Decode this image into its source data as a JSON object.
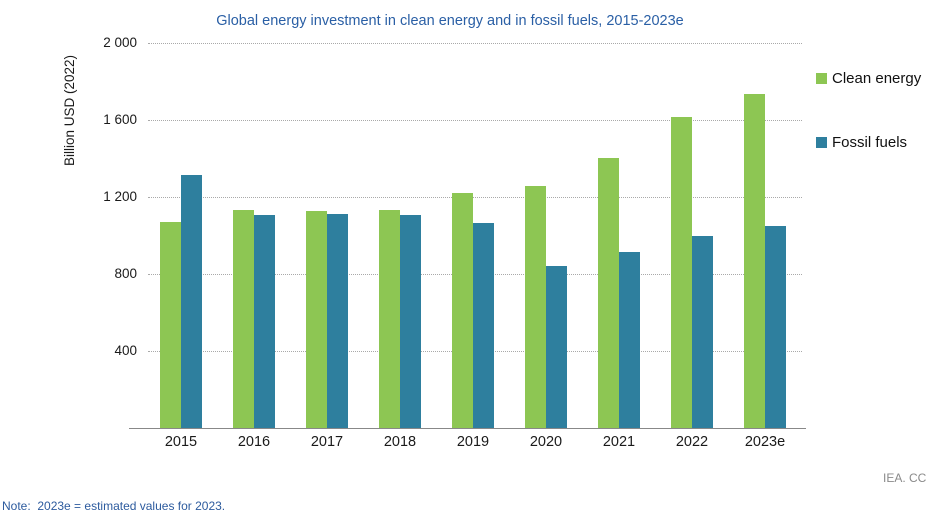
{
  "title": "Global energy investment in clean energy and in fossil fuels, 2015-2023e",
  "y_axis_label": "Billion USD (2022)",
  "note": "Note:  2023e = estimated values for 2023.",
  "attribution": "IEA. CC",
  "legend": {
    "items": [
      {
        "label": "Clean energy",
        "color": "#8dc653"
      },
      {
        "label": "Fossil fuels",
        "color": "#2e7f9e"
      }
    ]
  },
  "colors": {
    "clean_energy": "#8dc653",
    "fossil_fuels": "#2e7f9e",
    "title_blue": "#2a5fa5",
    "note_blue": "#2d5b9e",
    "gridline": "#a9a9a9",
    "axis_line": "#888888",
    "attribution_gray": "#8a8a8a"
  },
  "chart_data": {
    "type": "bar",
    "title": "Global energy investment in clean energy and in fossil fuels, 2015-2023e",
    "xlabel": "",
    "ylabel": "Billion USD (2022)",
    "categories": [
      "2015",
      "2016",
      "2017",
      "2018",
      "2019",
      "2020",
      "2021",
      "2022",
      "2023e"
    ],
    "series": [
      {
        "name": "Clean energy",
        "color": "#8dc653",
        "values": [
          1070,
          1130,
          1125,
          1130,
          1220,
          1255,
          1405,
          1615,
          1735
        ]
      },
      {
        "name": "Fossil fuels",
        "color": "#2e7f9e",
        "values": [
          1315,
          1105,
          1110,
          1105,
          1065,
          840,
          915,
          1000,
          1050
        ]
      }
    ],
    "ylim": [
      0,
      2000
    ],
    "yticks": [
      400,
      800,
      1200,
      1600,
      2000
    ],
    "ytick_labels": [
      "400",
      "800",
      "1 200",
      "1 600",
      "2 000"
    ],
    "grid": "horizontal-dotted",
    "legend_position": "right"
  }
}
